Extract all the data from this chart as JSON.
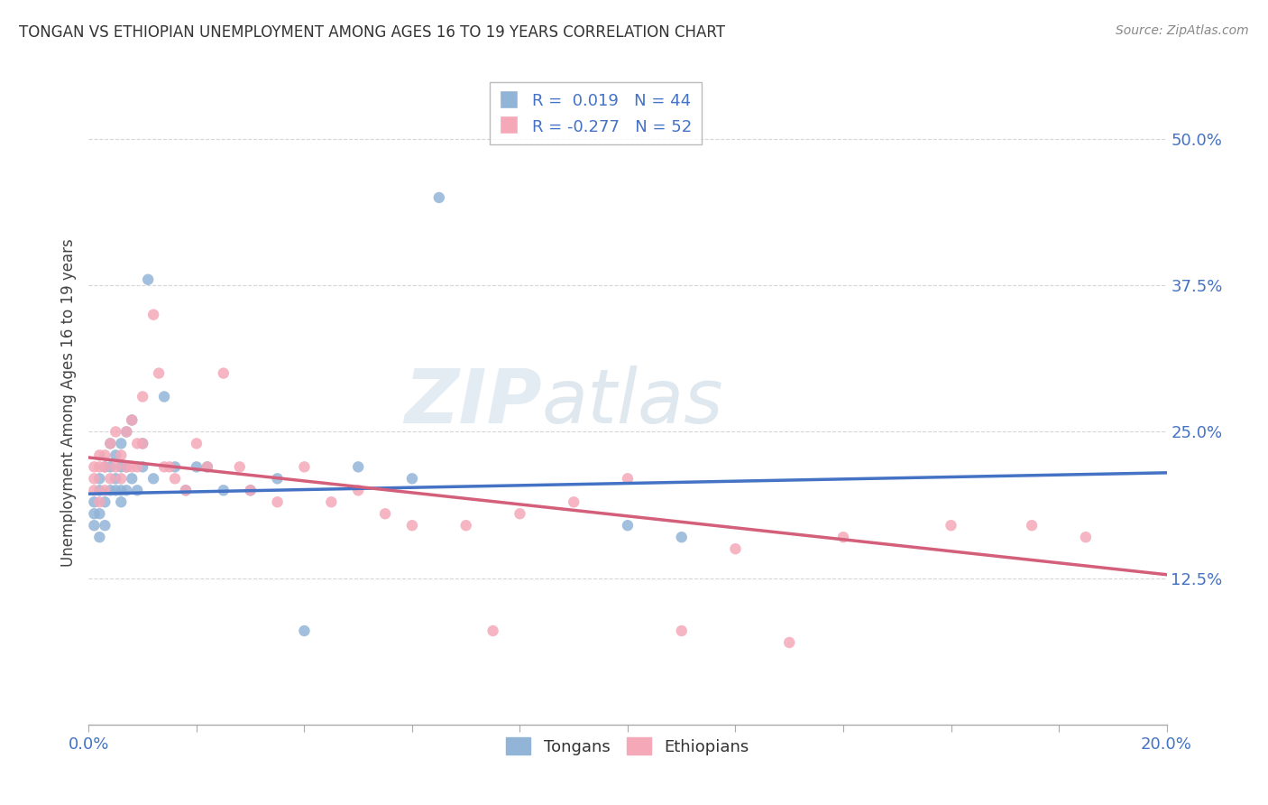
{
  "title": "TONGAN VS ETHIOPIAN UNEMPLOYMENT AMONG AGES 16 TO 19 YEARS CORRELATION CHART",
  "source": "Source: ZipAtlas.com",
  "ylabel": "Unemployment Among Ages 16 to 19 years",
  "ytick_labels": [
    "12.5%",
    "25.0%",
    "37.5%",
    "50.0%"
  ],
  "ytick_values": [
    0.125,
    0.25,
    0.375,
    0.5
  ],
  "legend_label_tongans": "Tongans",
  "legend_label_ethiopians": "Ethiopians",
  "tongans_color": "#92b4d7",
  "ethiopians_color": "#f4a8b8",
  "tonga_R": 0.019,
  "tonga_N": 44,
  "ethiopia_R": -0.277,
  "ethiopia_N": 52,
  "tonga_line_color": "#4472c4",
  "ethiopia_line_color": "#d45f7a",
  "xlim": [
    0.0,
    0.2
  ],
  "ylim": [
    0.0,
    0.55
  ],
  "background_color": "#ffffff",
  "tongans_x": [
    0.001,
    0.001,
    0.001,
    0.002,
    0.002,
    0.002,
    0.002,
    0.003,
    0.003,
    0.003,
    0.004,
    0.004,
    0.004,
    0.005,
    0.005,
    0.005,
    0.006,
    0.006,
    0.006,
    0.006,
    0.007,
    0.007,
    0.007,
    0.008,
    0.008,
    0.009,
    0.01,
    0.01,
    0.011,
    0.012,
    0.014,
    0.016,
    0.018,
    0.02,
    0.022,
    0.025,
    0.03,
    0.035,
    0.04,
    0.05,
    0.06,
    0.065,
    0.1,
    0.11
  ],
  "tongans_y": [
    0.17,
    0.18,
    0.19,
    0.16,
    0.18,
    0.2,
    0.21,
    0.17,
    0.19,
    0.22,
    0.2,
    0.22,
    0.24,
    0.2,
    0.21,
    0.23,
    0.19,
    0.2,
    0.22,
    0.24,
    0.2,
    0.22,
    0.25,
    0.21,
    0.26,
    0.2,
    0.22,
    0.24,
    0.38,
    0.21,
    0.28,
    0.22,
    0.2,
    0.22,
    0.22,
    0.2,
    0.2,
    0.21,
    0.08,
    0.22,
    0.21,
    0.45,
    0.17,
    0.16
  ],
  "ethiopians_x": [
    0.001,
    0.001,
    0.001,
    0.002,
    0.002,
    0.002,
    0.003,
    0.003,
    0.003,
    0.004,
    0.004,
    0.005,
    0.005,
    0.006,
    0.006,
    0.007,
    0.007,
    0.008,
    0.008,
    0.009,
    0.009,
    0.01,
    0.01,
    0.012,
    0.013,
    0.014,
    0.015,
    0.016,
    0.018,
    0.02,
    0.022,
    0.025,
    0.028,
    0.03,
    0.035,
    0.04,
    0.045,
    0.05,
    0.055,
    0.06,
    0.07,
    0.075,
    0.08,
    0.09,
    0.1,
    0.11,
    0.12,
    0.13,
    0.14,
    0.16,
    0.175,
    0.185
  ],
  "ethiopians_y": [
    0.21,
    0.22,
    0.2,
    0.19,
    0.22,
    0.23,
    0.2,
    0.22,
    0.23,
    0.21,
    0.24,
    0.22,
    0.25,
    0.21,
    0.23,
    0.22,
    0.25,
    0.22,
    0.26,
    0.22,
    0.24,
    0.24,
    0.28,
    0.35,
    0.3,
    0.22,
    0.22,
    0.21,
    0.2,
    0.24,
    0.22,
    0.3,
    0.22,
    0.2,
    0.19,
    0.22,
    0.19,
    0.2,
    0.18,
    0.17,
    0.17,
    0.08,
    0.18,
    0.19,
    0.21,
    0.08,
    0.15,
    0.07,
    0.16,
    0.17,
    0.17,
    0.16
  ],
  "tonga_line_x0": 0.0,
  "tonga_line_x1": 0.2,
  "tonga_line_y0": 0.197,
  "tonga_line_y1": 0.215,
  "ethiopia_line_x0": 0.0,
  "ethiopia_line_x1": 0.2,
  "ethiopia_line_y0": 0.228,
  "ethiopia_line_y1": 0.128
}
